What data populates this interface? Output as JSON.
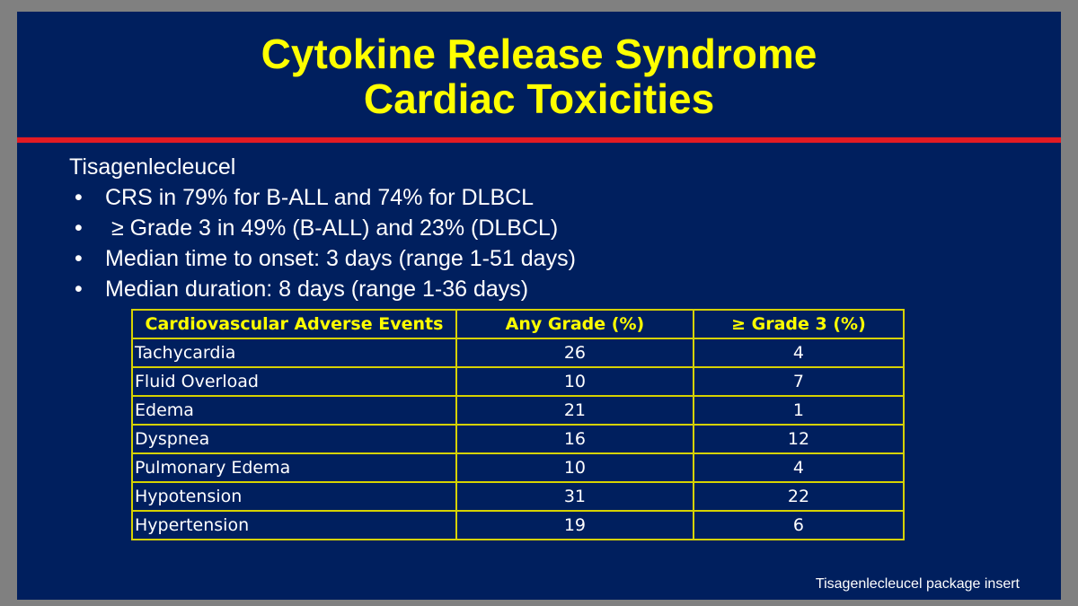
{
  "title": {
    "line1": "Cytokine Release Syndrome",
    "line2": "Cardiac Toxicities"
  },
  "heading": "Tisagenlecleucel",
  "bullets": [
    "CRS in 79% for B-ALL and 74% for DLBCL",
    " ≥ Grade 3 in 49% (B-ALL) and 23% (DLBCL)",
    "Median time to onset: 3 days (range 1-51 days)",
    "Median duration: 8 days (range 1-36 days)"
  ],
  "bullet_glyph": "•",
  "table": {
    "headers": [
      "Cardiovascular Adverse Events",
      "Any Grade (%)",
      "≥ Grade 3 (%)"
    ],
    "rows": [
      [
        "Tachycardia",
        "26",
        "4"
      ],
      [
        "Fluid Overload",
        "10",
        "7"
      ],
      [
        "Edema",
        "21",
        "1"
      ],
      [
        "Dyspnea",
        "16",
        "12"
      ],
      [
        "Pulmonary Edema",
        "10",
        "4"
      ],
      [
        "Hypotension",
        "31",
        "22"
      ],
      [
        "Hypertension",
        "19",
        "6"
      ]
    ]
  },
  "source": "Tisagenlecleucel package insert",
  "colors": {
    "background": "#001f5e",
    "title": "#ffff00",
    "rule": "#e31b23",
    "table_border": "#d6d200"
  }
}
